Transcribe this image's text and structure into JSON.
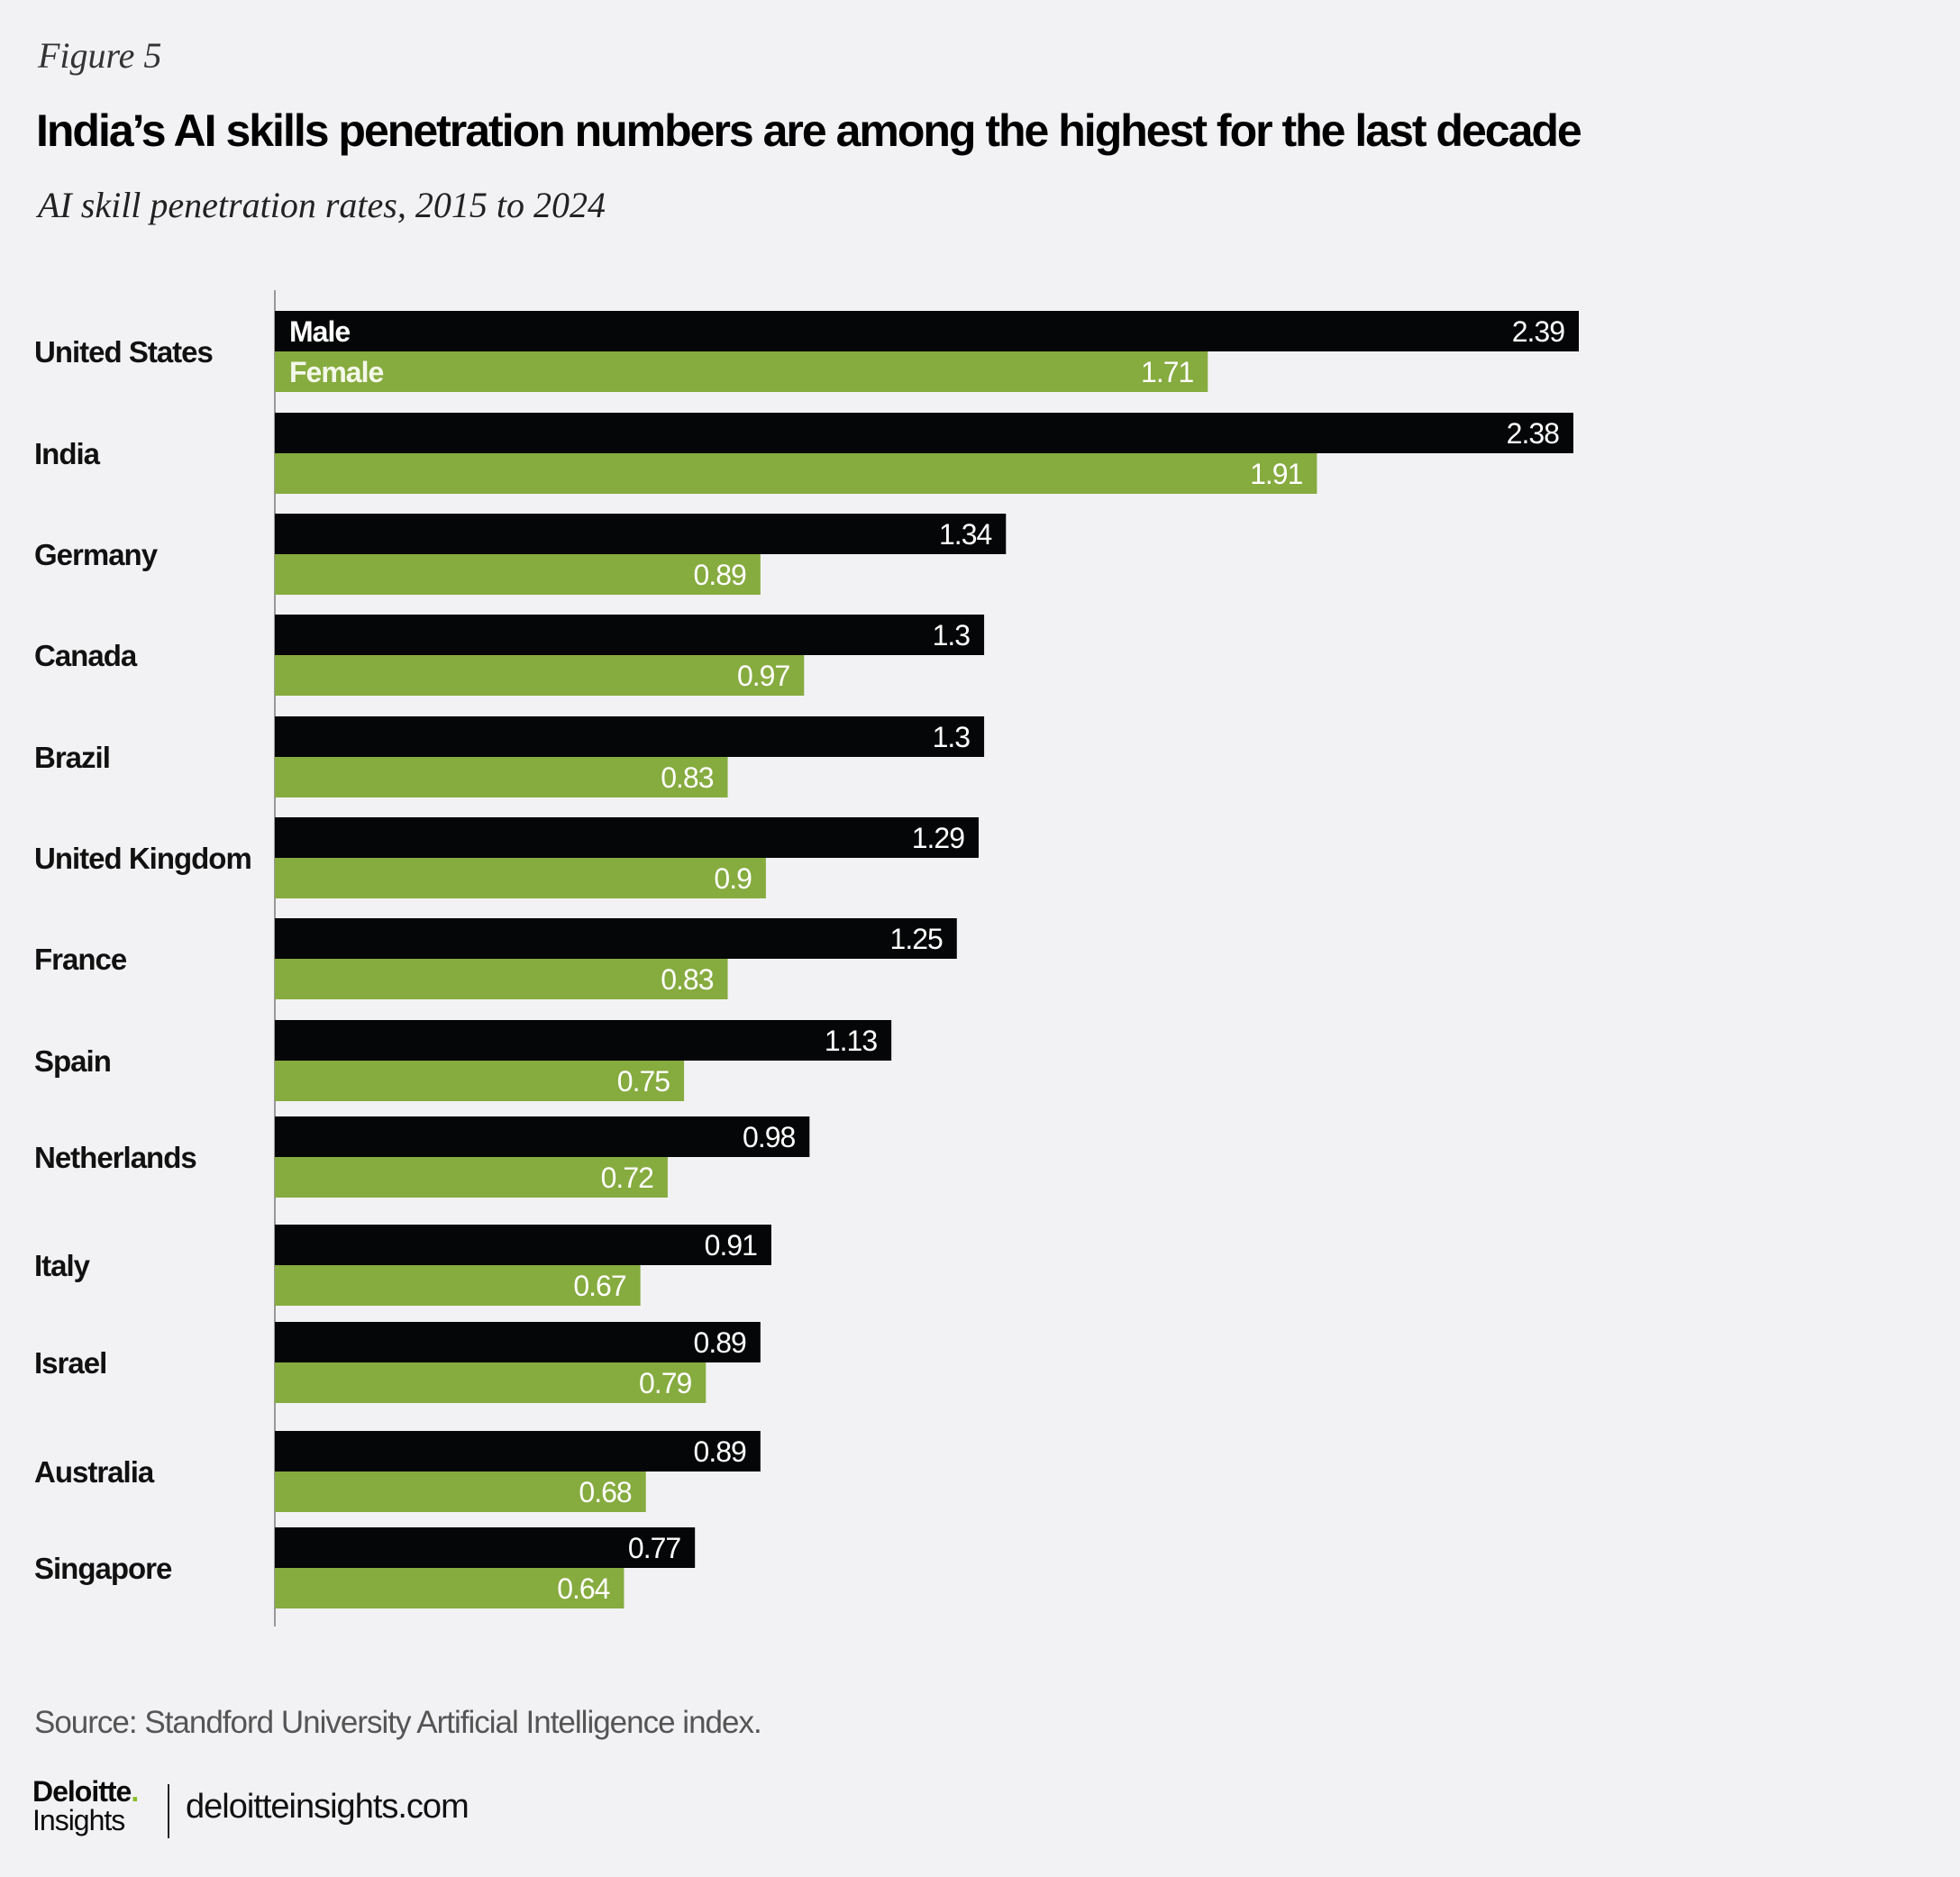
{
  "figure_label": "Figure 5",
  "title": "India’s AI skills penetration numbers are among the highest for the last decade",
  "subtitle": "AI skill penetration rates, 2015 to 2024",
  "source": "Source: Standford University Artificial Intelligence index.",
  "logo": {
    "brand": "Deloitte",
    "dot": ".",
    "sub": "Insights"
  },
  "url": "deloitteinsights.com",
  "colors": {
    "male": "#050607",
    "female": "#86ab3f",
    "axis": "#999999",
    "background": "#f2f2f4"
  },
  "chart_data": {
    "type": "bar",
    "orientation": "horizontal",
    "title": "India’s AI skills penetration numbers are among the highest for the last decade",
    "subtitle": "AI skill penetration rates, 2015 to 2024",
    "categories": [
      "United States",
      "India",
      "Germany",
      "Canada",
      "Brazil",
      "United Kingdom",
      "France",
      "Spain",
      "Netherlands",
      "Italy",
      "Israel",
      "Australia",
      "Singapore"
    ],
    "series": [
      {
        "name": "Male",
        "values": [
          2.39,
          2.38,
          1.34,
          1.3,
          1.3,
          1.29,
          1.25,
          1.13,
          0.98,
          0.91,
          0.89,
          0.89,
          0.77
        ],
        "labels": [
          "2.39",
          "2.38",
          "1.34",
          "1.3",
          "1.3",
          "1.29",
          "1.25",
          "1.13",
          "0.98",
          "0.91",
          "0.89",
          "0.89",
          "0.77"
        ]
      },
      {
        "name": "Female",
        "values": [
          1.71,
          1.91,
          0.89,
          0.97,
          0.83,
          0.9,
          0.83,
          0.75,
          0.72,
          0.67,
          0.79,
          0.68,
          0.64
        ],
        "labels": [
          "1.71",
          "1.91",
          "0.89",
          "0.97",
          "0.83",
          "0.9",
          "0.83",
          "0.75",
          "0.72",
          "0.67",
          "0.79",
          "0.68",
          "0.64"
        ]
      }
    ],
    "xlim": [
      0,
      2.39
    ],
    "grid": false,
    "legend": "inside first bars"
  }
}
